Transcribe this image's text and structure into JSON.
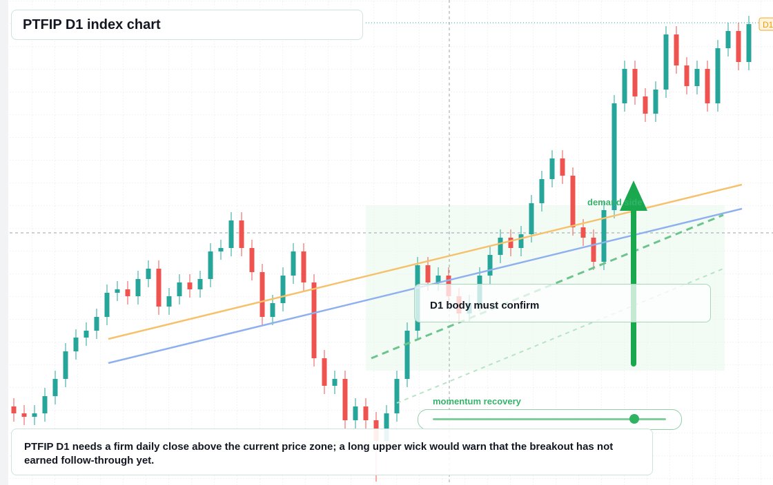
{
  "chart_data": {
    "type": "candlestick",
    "title": "PTFIP D1 index chart",
    "price_tag": "D1",
    "annotations": {
      "confirm": "D1 body must confirm",
      "demand": "demand side",
      "momentum": "momentum recovery",
      "note": "PTFIP D1 needs a firm daily close above the current price zone; a long upper wick would warn that the breakout has not earned follow-through yet."
    },
    "up_color": "#26a69a",
    "down_color": "#ef5350",
    "ylim": [
      0,
      70
    ],
    "open": [
      11.4,
      10.4,
      9.9,
      10.4,
      12.9,
      15.4,
      19.4,
      21.4,
      22.4,
      24.4,
      27.9,
      28.4,
      27.4,
      29.9,
      31.4,
      25.9,
      27.4,
      29.4,
      28.4,
      29.9,
      33.9,
      34.4,
      38.4,
      34.4,
      30.9,
      24.4,
      26.4,
      30.4,
      33.9,
      29.4,
      18.4,
      14.4,
      15.4,
      9.4,
      11.4,
      9.4,
      6.4,
      10.4,
      15.4,
      22.4,
      31.9,
      29.4,
      30.4,
      27.4,
      24.9,
      26.4,
      30.4,
      33.4,
      35.9,
      34.4,
      36.4,
      40.9,
      44.4,
      47.4,
      44.9,
      37.4,
      35.9,
      32.4,
      39.9,
      55.4,
      60.4,
      56.4,
      53.9,
      57.4,
      65.4,
      60.9,
      57.9,
      60.4,
      55.4,
      63.4,
      65.9,
      61.4
    ],
    "high": [
      12.6,
      11.6,
      11.6,
      14.1,
      16.6,
      20.6,
      22.6,
      23.6,
      25.6,
      29.1,
      29.6,
      29.6,
      31.1,
      32.6,
      32.6,
      28.6,
      30.6,
      30.6,
      31.1,
      35.1,
      35.6,
      39.6,
      39.6,
      35.6,
      32.1,
      27.6,
      31.6,
      35.1,
      35.1,
      30.6,
      19.6,
      16.6,
      16.6,
      12.6,
      12.6,
      10.6,
      11.6,
      16.6,
      23.6,
      33.1,
      33.1,
      31.6,
      31.6,
      28.6,
      27.6,
      31.6,
      34.6,
      37.1,
      37.1,
      37.6,
      42.1,
      45.6,
      48.6,
      48.6,
      46.1,
      38.6,
      37.1,
      41.1,
      56.6,
      61.6,
      61.6,
      57.6,
      58.6,
      66.6,
      66.6,
      62.1,
      61.6,
      61.6,
      64.6,
      67.1,
      67.1,
      68.1
    ],
    "low": [
      9.2,
      8.7,
      8.7,
      9.2,
      11.7,
      14.2,
      18.2,
      20.2,
      21.2,
      23.2,
      26.7,
      26.2,
      26.2,
      28.7,
      24.7,
      24.7,
      26.2,
      27.2,
      27.2,
      28.7,
      32.7,
      33.2,
      33.2,
      29.7,
      23.2,
      23.2,
      25.2,
      29.2,
      28.2,
      17.2,
      13.2,
      13.2,
      8.2,
      8.2,
      8.2,
      0.5,
      5.2,
      9.2,
      14.2,
      21.2,
      28.2,
      28.2,
      26.2,
      23.7,
      23.7,
      25.2,
      29.2,
      32.2,
      33.2,
      33.2,
      35.2,
      39.7,
      43.2,
      43.7,
      36.2,
      34.7,
      31.2,
      31.2,
      38.7,
      54.2,
      55.2,
      52.7,
      52.7,
      56.2,
      59.7,
      56.7,
      56.7,
      54.2,
      54.2,
      62.2,
      60.2,
      60.2
    ],
    "close": [
      10.4,
      9.9,
      10.4,
      12.9,
      15.4,
      19.4,
      21.4,
      22.4,
      24.4,
      27.9,
      28.4,
      27.4,
      29.9,
      31.4,
      25.9,
      27.4,
      29.4,
      28.4,
      29.9,
      33.9,
      34.4,
      38.4,
      34.4,
      30.9,
      24.4,
      26.4,
      30.4,
      33.9,
      29.4,
      18.4,
      14.4,
      15.4,
      9.4,
      11.4,
      9.4,
      6.4,
      10.4,
      15.4,
      22.4,
      31.9,
      29.4,
      30.4,
      27.4,
      24.9,
      26.4,
      30.4,
      33.4,
      35.9,
      34.4,
      36.4,
      40.9,
      44.4,
      47.4,
      44.9,
      37.4,
      35.9,
      32.4,
      39.9,
      55.4,
      60.4,
      56.4,
      53.9,
      57.4,
      65.4,
      60.9,
      57.9,
      60.4,
      55.4,
      63.4,
      65.9,
      61.4,
      66.9
    ]
  }
}
